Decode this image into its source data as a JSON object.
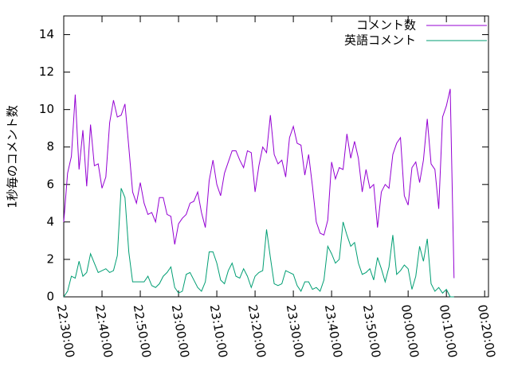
{
  "chart_data": {
    "type": "line",
    "ylabel": "1秒毎のコメント数",
    "x": [
      "22:30:00",
      "22:31:00",
      "22:32:00",
      "22:33:00",
      "22:34:00",
      "22:35:00",
      "22:36:00",
      "22:37:00",
      "22:38:00",
      "22:39:00",
      "22:40:00",
      "22:41:00",
      "22:42:00",
      "22:43:00",
      "22:44:00",
      "22:45:00",
      "22:46:00",
      "22:47:00",
      "22:48:00",
      "22:49:00",
      "22:50:00",
      "22:51:00",
      "22:52:00",
      "22:53:00",
      "22:54:00",
      "22:55:00",
      "22:56:00",
      "22:57:00",
      "22:58:00",
      "22:59:00",
      "23:00:00",
      "23:01:00",
      "23:02:00",
      "23:03:00",
      "23:04:00",
      "23:05:00",
      "23:06:00",
      "23:07:00",
      "23:08:00",
      "23:09:00",
      "23:10:00",
      "23:11:00",
      "23:12:00",
      "23:13:00",
      "23:14:00",
      "23:15:00",
      "23:16:00",
      "23:17:00",
      "23:18:00",
      "23:19:00",
      "23:20:00",
      "23:21:00",
      "23:22:00",
      "23:23:00",
      "23:24:00",
      "23:25:00",
      "23:26:00",
      "23:27:00",
      "23:28:00",
      "23:29:00",
      "23:30:00",
      "23:31:00",
      "23:32:00",
      "23:33:00",
      "23:34:00",
      "23:35:00",
      "23:36:00",
      "23:37:00",
      "23:38:00",
      "23:39:00",
      "23:40:00",
      "23:41:00",
      "23:42:00",
      "23:43:00",
      "23:44:00",
      "23:45:00",
      "23:46:00",
      "23:47:00",
      "23:48:00",
      "23:49:00",
      "23:50:00",
      "23:51:00",
      "23:52:00",
      "23:53:00",
      "23:54:00",
      "23:55:00",
      "23:56:00",
      "23:57:00",
      "23:58:00",
      "23:59:00",
      "00:00:00",
      "00:01:00",
      "00:02:00",
      "00:03:00",
      "00:04:00",
      "00:05:00",
      "00:06:00",
      "00:07:00",
      "00:08:00",
      "00:09:00",
      "00:10:00",
      "00:11:00",
      "00:12:00"
    ],
    "series": [
      {
        "name": "コメント数",
        "color": "#9400d3",
        "values": [
          4.0,
          6.6,
          7.5,
          10.8,
          6.8,
          8.9,
          5.9,
          9.2,
          7.0,
          7.1,
          5.8,
          6.4,
          9.3,
          10.5,
          9.6,
          9.7,
          10.3,
          8.0,
          5.6,
          5.0,
          6.1,
          5.0,
          4.4,
          4.5,
          4.0,
          5.3,
          5.3,
          4.4,
          4.3,
          2.8,
          3.9,
          4.2,
          4.4,
          5.0,
          5.1,
          5.6,
          4.5,
          3.7,
          6.2,
          7.3,
          6.0,
          5.4,
          6.6,
          7.2,
          7.8,
          7.8,
          7.3,
          6.9,
          7.8,
          7.7,
          5.6,
          7.0,
          8.0,
          7.7,
          9.7,
          7.6,
          7.1,
          7.3,
          6.4,
          8.5,
          9.1,
          8.2,
          8.1,
          6.5,
          7.6,
          5.9,
          4.0,
          3.4,
          3.3,
          4.1,
          7.2,
          6.3,
          6.9,
          6.8,
          8.7,
          7.4,
          8.3,
          7.4,
          5.6,
          6.8,
          5.8,
          6.0,
          3.7,
          5.6,
          6.0,
          5.8,
          7.6,
          8.2,
          8.5,
          5.4,
          4.9,
          6.9,
          7.2,
          6.1,
          7.3,
          9.5,
          7.1,
          6.8,
          4.7,
          9.6,
          10.2,
          11.1,
          1.0
        ]
      },
      {
        "name": "英語コメント",
        "color": "#009e73",
        "values": [
          0.0,
          0.3,
          1.1,
          1.0,
          1.9,
          1.1,
          1.3,
          2.3,
          1.8,
          1.3,
          1.4,
          1.5,
          1.3,
          1.4,
          2.2,
          5.8,
          5.3,
          2.4,
          0.8,
          0.8,
          0.8,
          0.8,
          1.1,
          0.6,
          0.5,
          0.7,
          1.1,
          1.3,
          1.6,
          0.5,
          0.2,
          0.3,
          1.2,
          1.3,
          0.9,
          0.5,
          0.3,
          0.8,
          2.4,
          2.4,
          1.8,
          0.9,
          0.7,
          1.4,
          1.8,
          1.1,
          1.0,
          1.5,
          1.1,
          0.5,
          1.1,
          1.3,
          1.4,
          3.6,
          2.1,
          0.7,
          0.6,
          0.7,
          1.4,
          1.3,
          1.2,
          0.6,
          0.3,
          0.8,
          0.8,
          0.4,
          0.5,
          0.3,
          0.9,
          2.7,
          2.3,
          1.8,
          2.0,
          4.0,
          3.3,
          2.7,
          2.9,
          1.8,
          1.2,
          1.3,
          1.5,
          0.9,
          2.1,
          1.5,
          0.8,
          1.6,
          3.3,
          1.2,
          1.4,
          1.7,
          1.5,
          0.4,
          1.1,
          2.7,
          1.9,
          3.1,
          0.7,
          0.3,
          0.5,
          0.2,
          0.4,
          0.0,
          0.0
        ]
      }
    ],
    "xlim": [
      "22:30:00",
      "00:21:00"
    ],
    "xticks": [
      "22:30:00",
      "22:40:00",
      "22:50:00",
      "23:00:00",
      "23:10:00",
      "23:20:00",
      "23:30:00",
      "23:40:00",
      "23:50:00",
      "00:00:00",
      "00:10:00",
      "00:20:00"
    ],
    "ylim": [
      0,
      15
    ],
    "yticks": [
      0,
      2,
      4,
      6,
      8,
      10,
      12,
      14
    ],
    "legend": "top-right"
  }
}
